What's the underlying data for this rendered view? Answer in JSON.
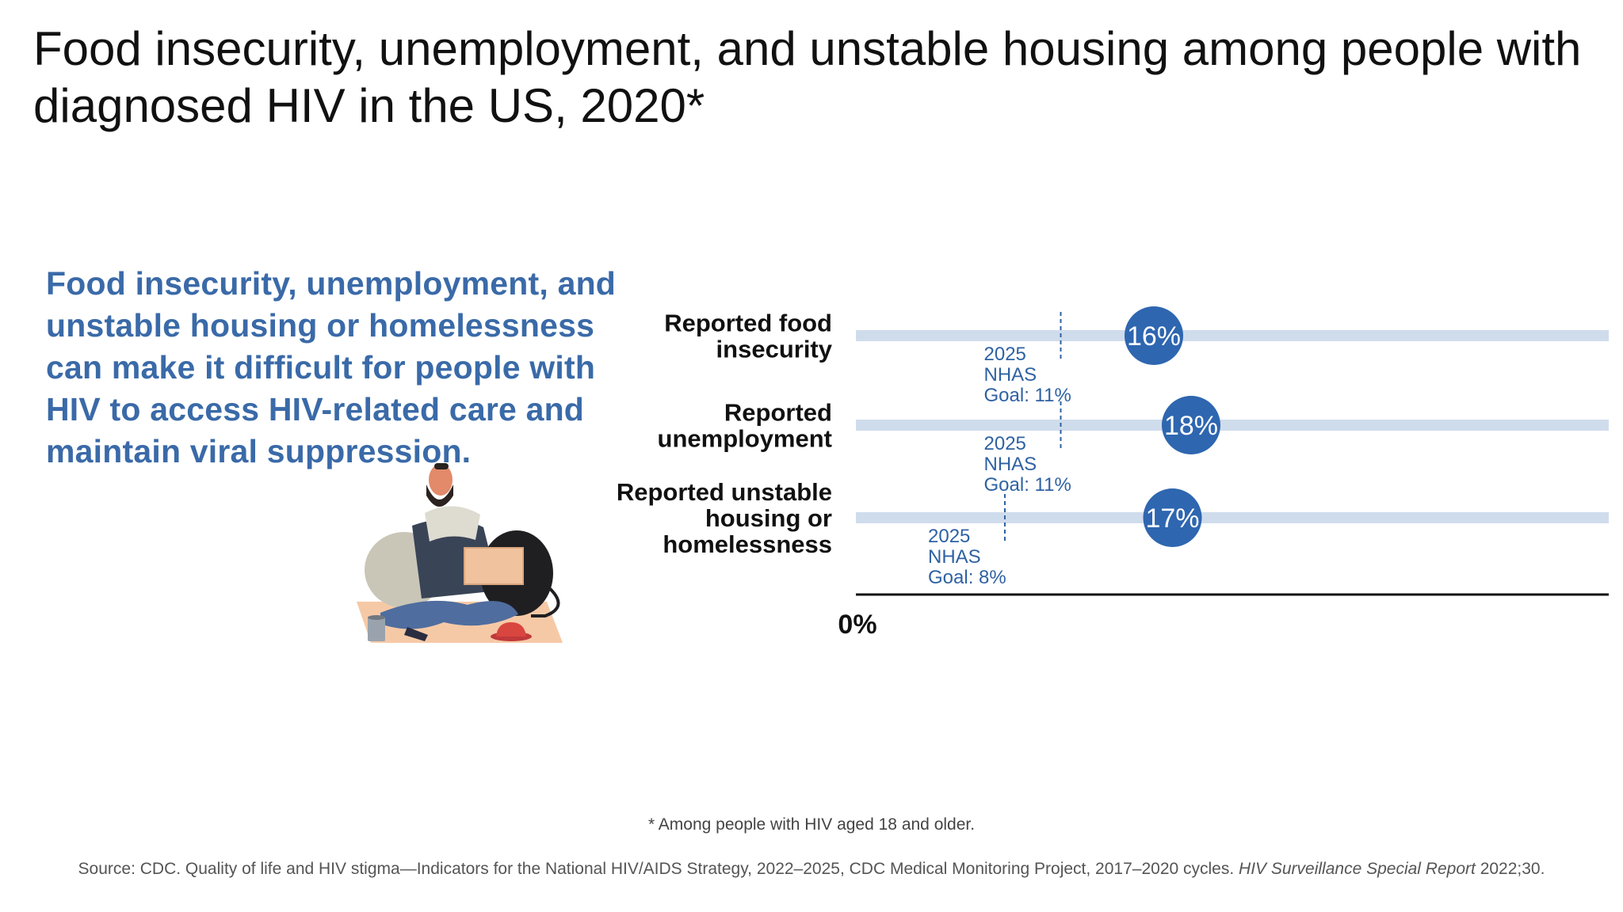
{
  "title": "Food insecurity, unemployment, and unstable housing among people with diagnosed HIV in the US, 2020*",
  "lead_text": "Food insecurity, unemployment, and unstable housing or homelessness can make it difficult for people with HIV to access HIV-related care and maintain viral suppression.",
  "footnote": "* Among people with HIV aged 18 and older.",
  "source": {
    "text": "Source: CDC. Quality of life and HIV stigma—Indicators for the National HIV/AIDS Strategy, 2022–2025, CDC Medical Monitoring Project, 2017–2020 cycles.",
    "publication": "HIV Surveillance Special Report",
    "citation": "2022;30."
  },
  "chart_data": {
    "type": "bar",
    "categories": [
      [
        "Reported food",
        "insecurity"
      ],
      [
        "Reported",
        "unemployment"
      ],
      [
        "Reported unstable",
        "housing or",
        "homelessness"
      ]
    ],
    "values": [
      16,
      18,
      17
    ],
    "value_labels": [
      "16%",
      "18%",
      "17%"
    ],
    "goals": [
      11,
      11,
      8
    ],
    "goal_labels": [
      [
        "2025",
        "NHAS",
        "Goal: 11%"
      ],
      [
        "2025",
        "NHAS",
        "Goal: 11%"
      ],
      [
        "2025",
        "NHAS",
        "Goal: 8%"
      ]
    ],
    "x_tick_label": "0%",
    "xlim": [
      0,
      100
    ],
    "colors": {
      "value": "#2e66b0",
      "track": "#cfdcec",
      "goal_line": "#2f62a3",
      "axis": "#111111"
    }
  }
}
